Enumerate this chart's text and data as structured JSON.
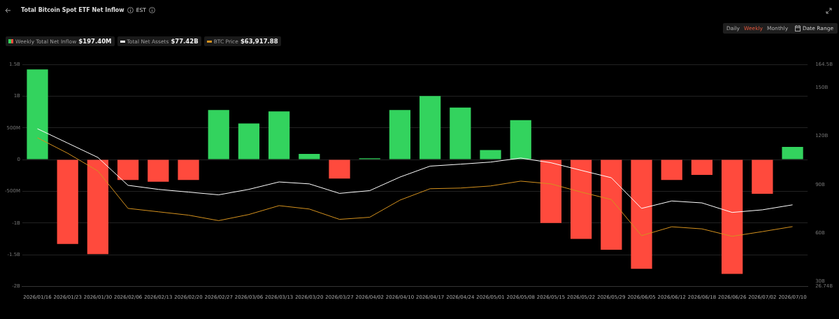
{
  "chart_data": {
    "type": "bar",
    "title": "Total Bitcoin Spot ETF Net Inflow",
    "categories": [
      "2026/01/16",
      "2026/01/23",
      "2026/01/30",
      "2026/02/06",
      "2026/02/13",
      "2026/02/20",
      "2026/02/27",
      "2026/03/06",
      "2026/03/13",
      "2026/03/20",
      "2026/03/27",
      "2026/04/02",
      "2026/04/10",
      "2026/04/17",
      "2026/04/24",
      "2026/05/01",
      "2026/05/08",
      "2026/05/15",
      "2026/05/22",
      "2026/05/29",
      "2026/06/05",
      "2026/06/12",
      "2026/06/18",
      "2026/06/26",
      "2026/07/02",
      "2026/07/10"
    ],
    "series": [
      {
        "name": "Weekly Total Net Inflow",
        "values": [
          1420000000,
          -1330000000,
          -1490000000,
          -320000000,
          -350000000,
          -320000000,
          780000000,
          570000000,
          760000000,
          90000000,
          -300000000,
          20000000,
          780000000,
          1000000000,
          820000000,
          150000000,
          620000000,
          -1000000000,
          -1250000000,
          -1420000000,
          -1720000000,
          -320000000,
          -240000000,
          -1800000000,
          -540000000,
          200000000
        ],
        "colors": [
          "#33d35e",
          "#ff4a3d",
          "#ff4a3d",
          "#ff4a3d",
          "#ff4a3d",
          "#ff4a3d",
          "#33d35e",
          "#33d35e",
          "#33d35e",
          "#33d35e",
          "#ff4a3d",
          "#33d35e",
          "#33d35e",
          "#33d35e",
          "#33d35e",
          "#33d35e",
          "#33d35e",
          "#ff4a3d",
          "#ff4a3d",
          "#ff4a3d",
          "#ff4a3d",
          "#ff4a3d",
          "#ff4a3d",
          "#ff4a3d",
          "#ff4a3d",
          "#33d35e"
        ]
      },
      {
        "name": "Total Net Assets",
        "type": "line",
        "axis": "y2",
        "color": "#ffffff",
        "values": [
          124.6,
          115.7,
          106.8,
          89.5,
          87,
          85.3,
          83.6,
          87,
          91.6,
          90.4,
          84.5,
          86.2,
          94.6,
          101.4,
          102.6,
          103.9,
          106.4,
          103.5,
          98.8,
          94.2,
          75.2,
          79.8,
          78.6,
          72.7,
          74.3,
          77.4
        ]
      },
      {
        "name": "BTC Price",
        "type": "line",
        "axis": "y2",
        "color": "#d4911e",
        "values": [
          119,
          109.4,
          98.4,
          75.2,
          73.1,
          71,
          67.6,
          71.4,
          76.9,
          74.8,
          68.4,
          69.7,
          80.3,
          87.4,
          87.8,
          89.1,
          92.1,
          90.4,
          85.3,
          80.7,
          58.3,
          63.8,
          62.5,
          57.9,
          60.8,
          63.9
        ]
      }
    ],
    "ylim": [
      -2000000000,
      1500000000
    ],
    "yticks": [
      {
        "value": -2000000000,
        "label": "-2B"
      },
      {
        "value": -1500000000,
        "label": "-1.5B"
      },
      {
        "value": -1000000000,
        "label": "-1B"
      },
      {
        "value": -500000000,
        "label": "-500M"
      },
      0,
      {
        "value": 500000000,
        "label": "500M"
      },
      {
        "value": 1000000000,
        "label": "1B"
      },
      {
        "value": 1500000000,
        "label": "1.5B"
      }
    ],
    "y2lim": [
      26.74,
      164.5
    ],
    "y2ticks": [
      {
        "value": 26.74,
        "label": "26.74B"
      },
      {
        "value": 30,
        "label": "30B"
      },
      {
        "value": 60,
        "label": "60B"
      },
      {
        "value": 90,
        "label": "90B"
      },
      {
        "value": 120,
        "label": "120B"
      },
      {
        "value": 150,
        "label": "150B"
      },
      {
        "value": 164.5,
        "label": "164.5B"
      }
    ],
    "grid": "y",
    "legend": "top left",
    "marker": "none",
    "line_style": "solid",
    "annotations": [
      "$197.40M",
      "$77.42B",
      "$63,917.88",
      "EST",
      "Daily",
      "Weekly",
      "Monthly",
      "Date Range"
    ]
  }
}
